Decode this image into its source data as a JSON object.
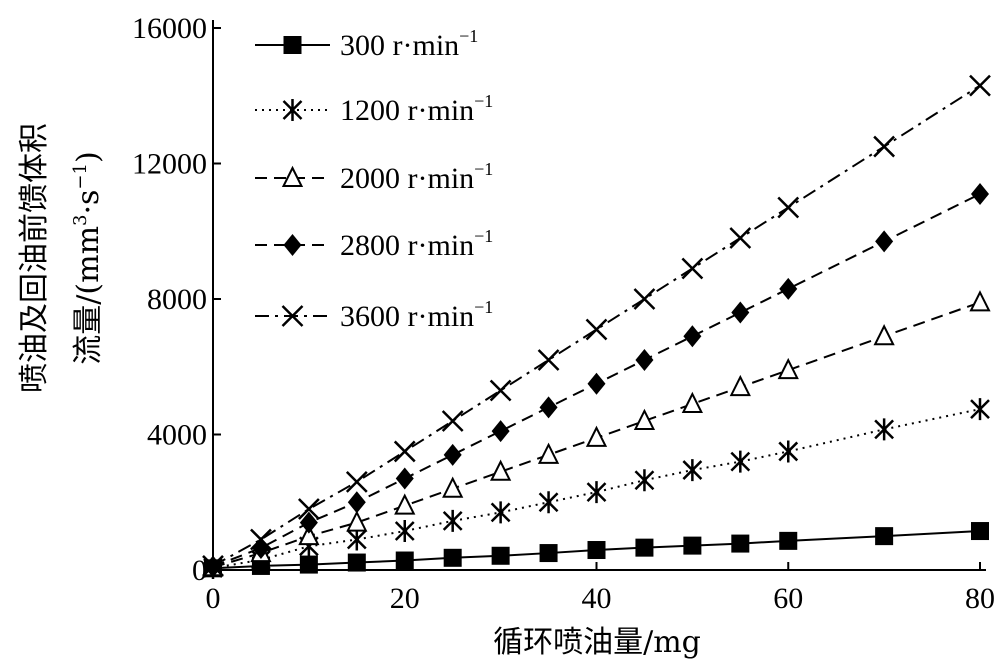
{
  "chart_data": {
    "type": "line",
    "xlabel": "循环喷油量/mg",
    "ylabel_line1": "喷油及回油前馈体积",
    "ylabel_line2_prefix": "流量/(mm",
    "ylabel_line2_sup1": "3",
    "ylabel_line2_mid": "·s",
    "ylabel_line2_sup2": "−1",
    "ylabel_line2_suffix": ")",
    "xlim": [
      0,
      80
    ],
    "ylim": [
      0,
      16000
    ],
    "xticks": [
      0,
      20,
      40,
      60,
      80
    ],
    "yticks": [
      0,
      4000,
      8000,
      12000,
      16000
    ],
    "legend_position": "top-left",
    "series": [
      {
        "name": "300 r·min",
        "unit_sup": "−1",
        "marker": "filled-square",
        "line_style": "solid",
        "x": [
          0,
          5,
          10,
          15,
          20,
          25,
          30,
          35,
          40,
          45,
          50,
          55,
          60,
          70,
          80
        ],
        "y": [
          50,
          120,
          160,
          220,
          280,
          360,
          420,
          500,
          590,
          660,
          720,
          780,
          860,
          1000,
          1150
        ]
      },
      {
        "name": "1200 r·min",
        "unit_sup": "−1",
        "marker": "asterisk",
        "line_style": "dotted",
        "x": [
          0,
          5,
          10,
          15,
          20,
          25,
          30,
          35,
          40,
          45,
          50,
          55,
          60,
          70,
          80
        ],
        "y": [
          60,
          300,
          700,
          900,
          1150,
          1450,
          1700,
          2000,
          2300,
          2650,
          2950,
          3200,
          3500,
          4150,
          4750
        ]
      },
      {
        "name": "2000 r·min",
        "unit_sup": "−1",
        "marker": "open-triangle",
        "line_style": "dashed",
        "x": [
          0,
          5,
          10,
          15,
          20,
          25,
          30,
          35,
          40,
          45,
          50,
          55,
          60,
          70,
          80
        ],
        "y": [
          80,
          500,
          1000,
          1400,
          1900,
          2400,
          2900,
          3400,
          3900,
          4400,
          4900,
          5400,
          5900,
          6900,
          7900
        ]
      },
      {
        "name": "2800 r·min",
        "unit_sup": "−1",
        "marker": "filled-diamond",
        "line_style": "dashed",
        "x": [
          0,
          5,
          10,
          15,
          20,
          25,
          30,
          35,
          40,
          45,
          50,
          55,
          60,
          70,
          80
        ],
        "y": [
          100,
          650,
          1400,
          2000,
          2700,
          3400,
          4100,
          4800,
          5500,
          6200,
          6900,
          7600,
          8300,
          9700,
          11100
        ]
      },
      {
        "name": "3600 r·min",
        "unit_sup": "−1",
        "marker": "x-cross",
        "line_style": "dash-dot",
        "x": [
          0,
          5,
          10,
          15,
          20,
          25,
          30,
          35,
          40,
          45,
          50,
          55,
          60,
          70,
          80
        ],
        "y": [
          120,
          900,
          1800,
          2600,
          3500,
          4400,
          5300,
          6200,
          7100,
          8000,
          8900,
          9800,
          10700,
          12500,
          14300
        ]
      }
    ]
  }
}
